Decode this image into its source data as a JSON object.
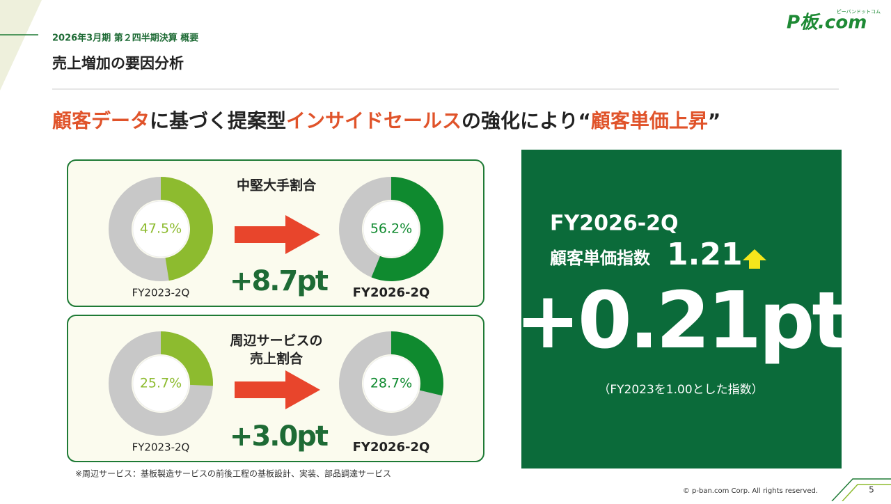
{
  "header": {
    "period": "2026年3月期 第２四半期決算 概要",
    "title": "売上増加の要因分析"
  },
  "logo": {
    "text": "P板.com",
    "kana": "ピーバンドットコム"
  },
  "headline": [
    {
      "text": "顧客データ",
      "accent": true
    },
    {
      "text": "に基づく提案型",
      "accent": false
    },
    {
      "text": "インサイドセールス",
      "accent": true
    },
    {
      "text": "の強化により“",
      "accent": false
    },
    {
      "text": "顧客単価上昇",
      "accent": true
    },
    {
      "text": "”",
      "accent": false
    }
  ],
  "panels": [
    {
      "title": [
        "中堅大手割合"
      ],
      "change": "+8.7pt"
    },
    {
      "title": [
        "周辺サービスの",
        "売上割合"
      ],
      "change": "+3.0pt"
    }
  ],
  "chart_data": [
    {
      "type": "pie",
      "label": "FY2023-2Q",
      "values": [
        47.5
      ],
      "value_labels": [
        "47.5%"
      ],
      "color": "#8dbb2f"
    },
    {
      "type": "pie",
      "label": "FY2026-2Q",
      "values": [
        56.2
      ],
      "value_labels": [
        "56.2%"
      ],
      "color": "#0f8a2f"
    },
    {
      "type": "pie",
      "label": "FY2023-2Q",
      "values": [
        25.7
      ],
      "value_labels": [
        "25.7%"
      ],
      "color": "#8dbb2f"
    },
    {
      "type": "pie",
      "label": "FY2026-2Q",
      "values": [
        28.7
      ],
      "value_labels": [
        "28.7%"
      ],
      "color": "#0f8a2f"
    }
  ],
  "highlight": {
    "period": "FY2026-2Q",
    "metric": "顧客単価指数",
    "index": "1.21",
    "change": "+0.21pt",
    "note": "（FY2023を1.00とした指数）"
  },
  "footnote": "※周辺サービス：基板製造サービスの前後工程の基板設計、実装、部品調達サービス",
  "copyright": "©  p-ban.com Corp. All rights reserved.",
  "page": "5"
}
